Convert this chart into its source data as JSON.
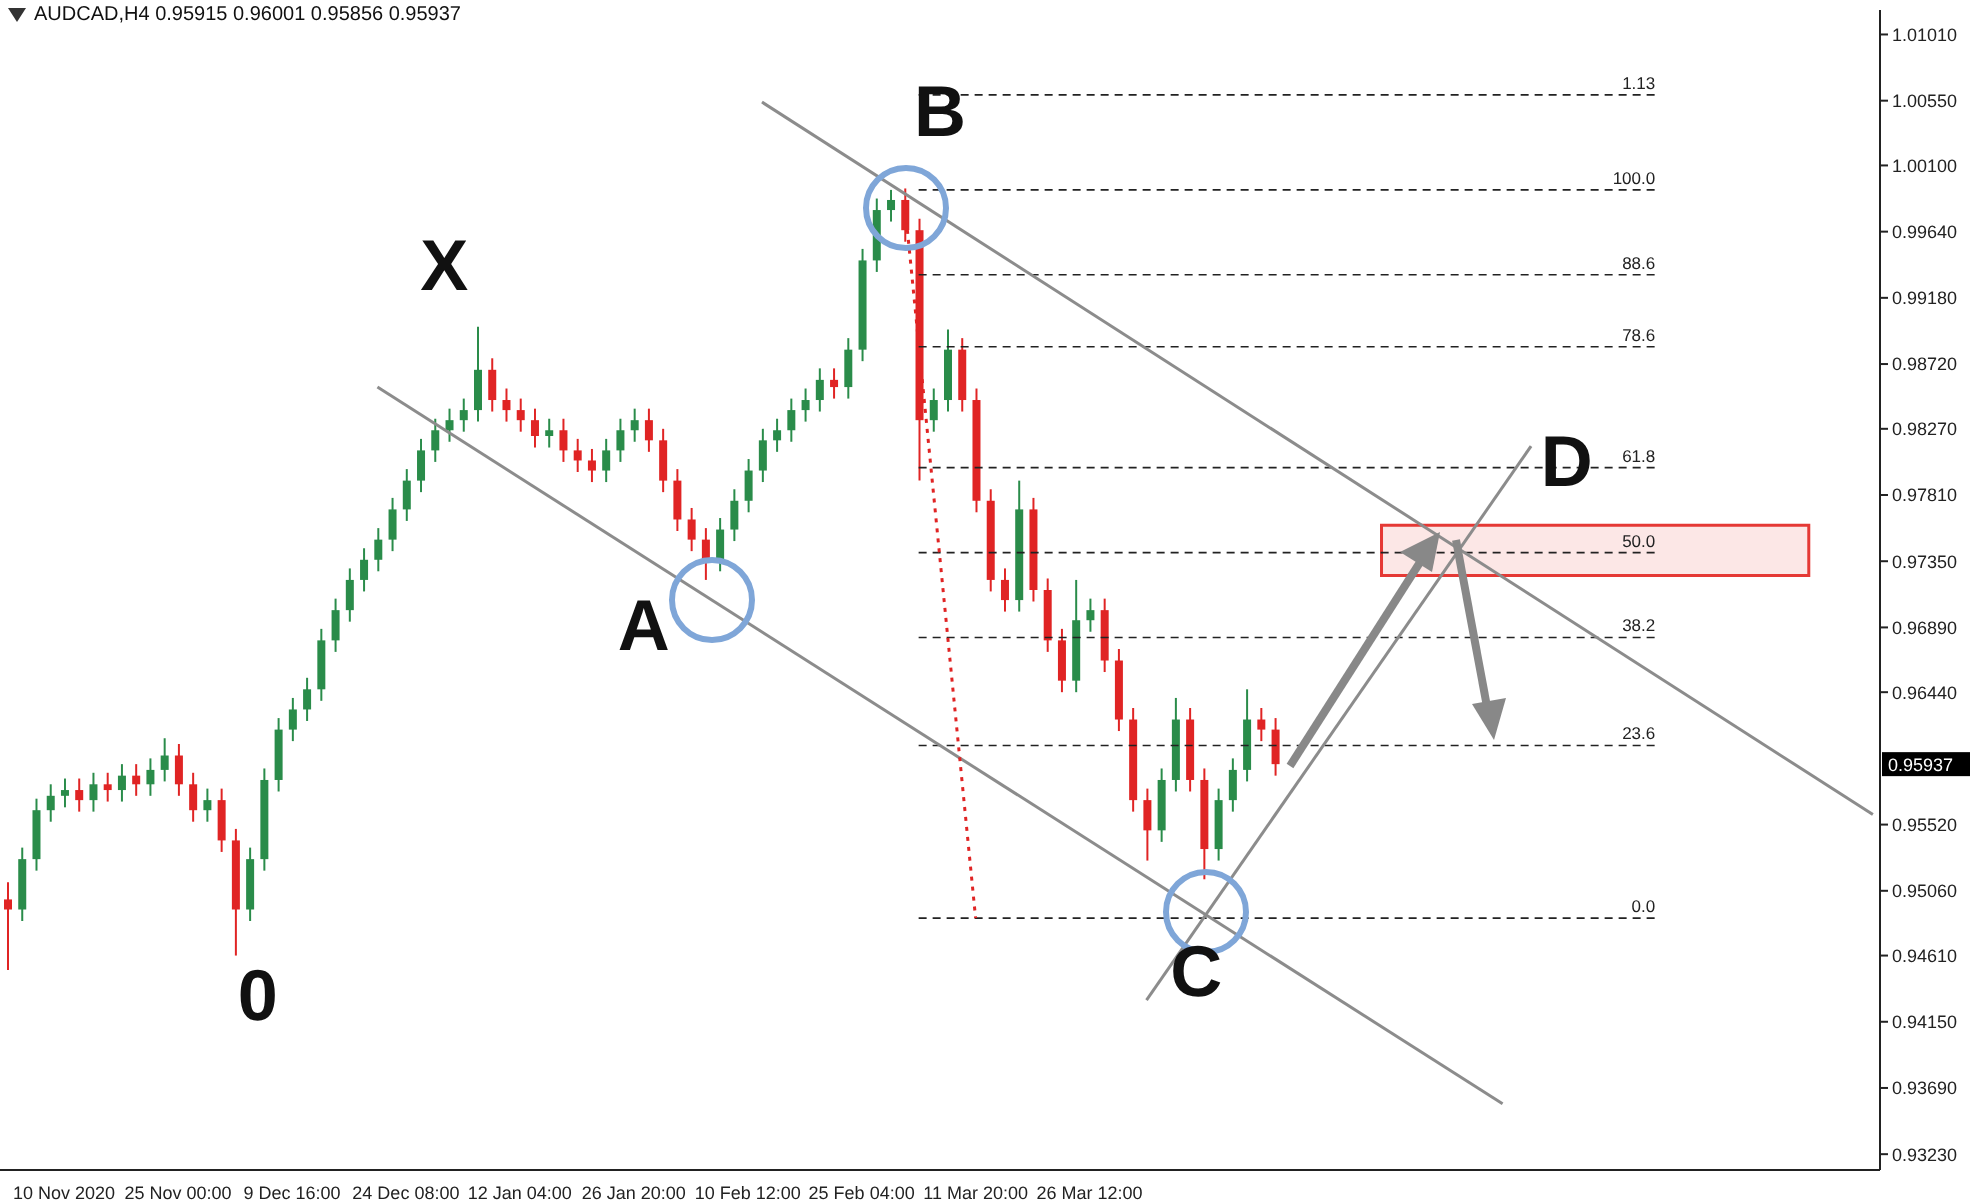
{
  "chart_data": {
    "type": "candlestick",
    "title": "AUDCAD,H4  0.95915 0.96001 0.95856 0.95937",
    "categories": [
      null,
      null,
      null,
      null,
      "10 Nov 2020",
      null,
      null,
      null,
      null,
      null,
      null,
      null,
      "25 Nov 00:00",
      null,
      null,
      null,
      null,
      null,
      null,
      null,
      "9 Dec 16:00",
      null,
      null,
      null,
      null,
      null,
      null,
      null,
      "24 Dec 08:00",
      null,
      null,
      null,
      null,
      null,
      null,
      null,
      "12 Jan 04:00",
      null,
      null,
      null,
      null,
      null,
      null,
      null,
      "26 Jan 20:00",
      null,
      null,
      null,
      null,
      null,
      null,
      null,
      "10 Feb 12:00",
      null,
      null,
      null,
      null,
      null,
      null,
      null,
      "25 Feb 04:00",
      null,
      null,
      null,
      null,
      null,
      null,
      null,
      "11 Mar 20:00",
      null,
      null,
      null,
      null,
      null,
      null,
      null,
      "26 Mar 12:00",
      null,
      null,
      null,
      null,
      null,
      null,
      null,
      null,
      null,
      null,
      null,
      null,
      null,
      null,
      null,
      null,
      null,
      null,
      null,
      null,
      null,
      null,
      null,
      null,
      null,
      null,
      null,
      null,
      null,
      null,
      null,
      null,
      null,
      null,
      null,
      null,
      null,
      null,
      null,
      null,
      null,
      null,
      null,
      null,
      null,
      null,
      null,
      null,
      null,
      null,
      null,
      null,
      null,
      null,
      null
    ],
    "ohlc": [
      [
        0.95,
        0.9512,
        0.9451,
        0.9493
      ],
      [
        0.9493,
        0.9536,
        0.9485,
        0.9528
      ],
      [
        0.9528,
        0.957,
        0.952,
        0.9562
      ],
      [
        0.9562,
        0.958,
        0.9554,
        0.9572
      ],
      [
        0.9572,
        0.9584,
        0.9564,
        0.9576
      ],
      [
        0.9576,
        0.9584,
        0.9561,
        0.9569
      ],
      [
        0.9569,
        0.9588,
        0.9561,
        0.958
      ],
      [
        0.958,
        0.9588,
        0.9568,
        0.9576
      ],
      [
        0.9576,
        0.9594,
        0.9568,
        0.9586
      ],
      [
        0.9586,
        0.9594,
        0.9572,
        0.958
      ],
      [
        0.958,
        0.9598,
        0.9572,
        0.959
      ],
      [
        0.959,
        0.9612,
        0.9582,
        0.96
      ],
      [
        0.96,
        0.9608,
        0.9572,
        0.958
      ],
      [
        0.958,
        0.9588,
        0.9554,
        0.9562
      ],
      [
        0.9562,
        0.9577,
        0.9554,
        0.9569
      ],
      [
        0.9569,
        0.9577,
        0.9533,
        0.9541
      ],
      [
        0.9541,
        0.9549,
        0.9461,
        0.9493
      ],
      [
        0.9493,
        0.9536,
        0.9485,
        0.9528
      ],
      [
        0.9528,
        0.9591,
        0.952,
        0.9583
      ],
      [
        0.9583,
        0.9626,
        0.9575,
        0.9618
      ],
      [
        0.9618,
        0.964,
        0.961,
        0.9632
      ],
      [
        0.9632,
        0.9654,
        0.9624,
        0.9646
      ],
      [
        0.9646,
        0.9688,
        0.9638,
        0.968
      ],
      [
        0.968,
        0.9709,
        0.9672,
        0.9701
      ],
      [
        0.9701,
        0.973,
        0.9693,
        0.9722
      ],
      [
        0.9722,
        0.9744,
        0.9714,
        0.9736
      ],
      [
        0.9736,
        0.9758,
        0.9728,
        0.975
      ],
      [
        0.975,
        0.9779,
        0.9742,
        0.9771
      ],
      [
        0.9771,
        0.9799,
        0.9763,
        0.9791
      ],
      [
        0.9791,
        0.982,
        0.9783,
        0.9812
      ],
      [
        0.9812,
        0.9834,
        0.9804,
        0.9826
      ],
      [
        0.9826,
        0.9841,
        0.9818,
        0.9833
      ],
      [
        0.9833,
        0.9848,
        0.9825,
        0.984
      ],
      [
        0.984,
        0.9898,
        0.9832,
        0.9868
      ],
      [
        0.9868,
        0.9876,
        0.9839,
        0.9847
      ],
      [
        0.9847,
        0.9855,
        0.9832,
        0.984
      ],
      [
        0.984,
        0.9848,
        0.9825,
        0.9833
      ],
      [
        0.9833,
        0.9841,
        0.9814,
        0.9822
      ],
      [
        0.9822,
        0.9834,
        0.9814,
        0.9826
      ],
      [
        0.9826,
        0.9834,
        0.9804,
        0.9812
      ],
      [
        0.9812,
        0.982,
        0.9797,
        0.9805
      ],
      [
        0.9805,
        0.9813,
        0.979,
        0.9798
      ],
      [
        0.9798,
        0.982,
        0.979,
        0.9812
      ],
      [
        0.9812,
        0.9834,
        0.9804,
        0.9826
      ],
      [
        0.9826,
        0.9841,
        0.9818,
        0.9833
      ],
      [
        0.9833,
        0.9841,
        0.9811,
        0.9819
      ],
      [
        0.9819,
        0.9827,
        0.9783,
        0.9791
      ],
      [
        0.9791,
        0.9799,
        0.9756,
        0.9764
      ],
      [
        0.9764,
        0.9772,
        0.9742,
        0.975
      ],
      [
        0.975,
        0.9758,
        0.9722,
        0.9736
      ],
      [
        0.9736,
        0.9765,
        0.9728,
        0.9757
      ],
      [
        0.9757,
        0.9785,
        0.9749,
        0.9777
      ],
      [
        0.9777,
        0.9806,
        0.9769,
        0.9798
      ],
      [
        0.9798,
        0.9827,
        0.979,
        0.9819
      ],
      [
        0.9819,
        0.9834,
        0.9811,
        0.9826
      ],
      [
        0.9826,
        0.9848,
        0.9818,
        0.984
      ],
      [
        0.984,
        0.9855,
        0.9832,
        0.9847
      ],
      [
        0.9847,
        0.9869,
        0.9839,
        0.9861
      ],
      [
        0.9861,
        0.9869,
        0.9848,
        0.9856
      ],
      [
        0.9856,
        0.989,
        0.9848,
        0.9882
      ],
      [
        0.9882,
        0.9952,
        0.9874,
        0.9944
      ],
      [
        0.9944,
        0.9987,
        0.9936,
        0.9979
      ],
      [
        0.9979,
        0.9993,
        0.9971,
        0.9986
      ],
      [
        0.9986,
        0.9994,
        0.9957,
        0.9965
      ],
      [
        0.9965,
        0.9973,
        0.9791,
        0.9833
      ],
      [
        0.9833,
        0.9855,
        0.9825,
        0.9847
      ],
      [
        0.9847,
        0.9896,
        0.9839,
        0.9882
      ],
      [
        0.9882,
        0.989,
        0.9839,
        0.9847
      ],
      [
        0.9847,
        0.9855,
        0.9769,
        0.9777
      ],
      [
        0.9777,
        0.9785,
        0.9714,
        0.9722
      ],
      [
        0.9722,
        0.973,
        0.97,
        0.9708
      ],
      [
        0.9708,
        0.9791,
        0.97,
        0.9771
      ],
      [
        0.9771,
        0.9779,
        0.9707,
        0.9715
      ],
      [
        0.9715,
        0.9723,
        0.9672,
        0.968
      ],
      [
        0.968,
        0.9688,
        0.9644,
        0.9652
      ],
      [
        0.9652,
        0.9722,
        0.9644,
        0.9694
      ],
      [
        0.9694,
        0.9709,
        0.9686,
        0.9701
      ],
      [
        0.9701,
        0.9709,
        0.9658,
        0.9666
      ],
      [
        0.9666,
        0.9674,
        0.9617,
        0.9625
      ],
      [
        0.9625,
        0.9633,
        0.9561,
        0.9569
      ],
      [
        0.9569,
        0.9577,
        0.9527,
        0.9548
      ],
      [
        0.9548,
        0.9591,
        0.954,
        0.9583
      ],
      [
        0.9583,
        0.964,
        0.9575,
        0.9625
      ],
      [
        0.9625,
        0.9633,
        0.9575,
        0.9583
      ],
      [
        0.9583,
        0.9591,
        0.9514,
        0.9535
      ],
      [
        0.9535,
        0.9577,
        0.9527,
        0.9569
      ],
      [
        0.9569,
        0.9598,
        0.9561,
        0.959
      ],
      [
        0.959,
        0.9646,
        0.9582,
        0.9625
      ],
      [
        0.9625,
        0.9633,
        0.961,
        0.9618
      ],
      [
        0.9618,
        0.9626,
        0.9586,
        0.9594
      ],
      null,
      null,
      null,
      null,
      null,
      null,
      null,
      null,
      null,
      null,
      null,
      null,
      null,
      null,
      null,
      null,
      null,
      null,
      null,
      null,
      null,
      null,
      null,
      null,
      null,
      null,
      null,
      null,
      null,
      null,
      null,
      null,
      null,
      null,
      null,
      null,
      null,
      null,
      null,
      null,
      null,
      null
    ],
    "colors": [
      "#e02424",
      "#2a8c4a",
      "#2a8c4a",
      "#2a8c4a",
      "#2a8c4a",
      "#e02424",
      "#2a8c4a",
      "#e02424",
      "#2a8c4a",
      "#e02424",
      "#2a8c4a",
      "#2a8c4a",
      "#e02424",
      "#e02424",
      "#2a8c4a",
      "#e02424",
      "#e02424",
      "#2a8c4a",
      "#2a8c4a",
      "#2a8c4a",
      "#2a8c4a",
      "#2a8c4a",
      "#2a8c4a",
      "#2a8c4a",
      "#2a8c4a",
      "#2a8c4a",
      "#2a8c4a",
      "#2a8c4a",
      "#2a8c4a",
      "#2a8c4a",
      "#2a8c4a",
      "#2a8c4a",
      "#2a8c4a",
      "#2a8c4a",
      "#e02424",
      "#e02424",
      "#e02424",
      "#e02424",
      "#2a8c4a",
      "#e02424",
      "#e02424",
      "#e02424",
      "#2a8c4a",
      "#2a8c4a",
      "#2a8c4a",
      "#e02424",
      "#e02424",
      "#e02424",
      "#e02424",
      "#e02424",
      "#2a8c4a",
      "#2a8c4a",
      "#2a8c4a",
      "#2a8c4a",
      "#2a8c4a",
      "#2a8c4a",
      "#2a8c4a",
      "#2a8c4a",
      "#e02424",
      "#2a8c4a",
      "#2a8c4a",
      "#2a8c4a",
      "#2a8c4a",
      "#e02424",
      "#e02424",
      "#2a8c4a",
      "#2a8c4a",
      "#e02424",
      "#e02424",
      "#e02424",
      "#e02424",
      "#2a8c4a",
      "#e02424",
      "#e02424",
      "#e02424",
      "#2a8c4a",
      "#2a8c4a",
      "#e02424",
      "#e02424",
      "#e02424",
      "#e02424",
      "#2a8c4a",
      "#2a8c4a",
      "#e02424",
      "#e02424",
      "#2a8c4a",
      "#2a8c4a",
      "#2a8c4a",
      "#e02424",
      "#e02424",
      null,
      null,
      null,
      null,
      null,
      null,
      null,
      null,
      null,
      null,
      null,
      null,
      null,
      null,
      null,
      null,
      null,
      null,
      null,
      null,
      null,
      null,
      null,
      null,
      null,
      null,
      null,
      null,
      null,
      null,
      null,
      null,
      null,
      null,
      null,
      null,
      null,
      null,
      null,
      null,
      null,
      null
    ],
    "series": [
      {
        "type": "line",
        "color": "#8c8c8c",
        "values": [
          null,
          null,
          null,
          null,
          null,
          null,
          null,
          null,
          null,
          null,
          null,
          null,
          null,
          null,
          null,
          null,
          null,
          null,
          null,
          null,
          null,
          null,
          null,
          null,
          null,
          null,
          null,
          null,
          null,
          null,
          null,
          null,
          null,
          null,
          null,
          null,
          null,
          null,
          null,
          null,
          null,
          null,
          null,
          null,
          null,
          null,
          null,
          null,
          null,
          null,
          null,
          null,
          null,
          1.0054,
          null,
          null,
          null,
          null,
          null,
          null,
          null,
          null,
          null,
          null,
          null,
          null,
          null,
          null,
          null,
          null,
          null,
          null,
          null,
          null,
          null,
          null,
          null,
          null,
          null,
          null,
          null,
          null,
          null,
          null,
          null,
          null,
          null,
          null,
          null,
          null,
          null,
          null,
          null,
          null,
          null,
          null,
          null,
          null,
          null,
          null,
          null,
          null,
          null,
          null,
          null,
          null,
          null,
          null,
          null,
          null,
          null,
          null,
          null,
          null,
          null,
          null,
          null,
          null,
          null,
          null,
          null,
          null,
          null,
          null,
          null,
          null,
          null,
          null,
          null,
          null,
          null,
          0.9559
        ]
      },
      {
        "type": "line",
        "color": "#8c8c8c",
        "values": [
          null,
          null,
          null,
          null,
          null,
          null,
          null,
          null,
          null,
          null,
          null,
          null,
          null,
          null,
          null,
          null,
          null,
          null,
          null,
          null,
          null,
          null,
          null,
          null,
          null,
          null,
          0.9856,
          null,
          null,
          null,
          null,
          null,
          null,
          null,
          null,
          null,
          null,
          null,
          null,
          null,
          null,
          null,
          null,
          null,
          null,
          null,
          null,
          null,
          null,
          null,
          null,
          null,
          null,
          null,
          null,
          null,
          null,
          null,
          null,
          null,
          null,
          null,
          null,
          null,
          null,
          null,
          null,
          null,
          null,
          null,
          null,
          null,
          null,
          null,
          null,
          null,
          null,
          null,
          null,
          null,
          null,
          null,
          null,
          null,
          null,
          null,
          null,
          null,
          null,
          null,
          null,
          null,
          null,
          null,
          null,
          null,
          null,
          null,
          null,
          null,
          null,
          null,
          null,
          null,
          null,
          0.9358,
          null,
          null,
          null,
          null,
          null,
          null,
          null,
          null,
          null,
          null,
          null,
          null,
          null,
          null,
          null,
          null,
          null,
          null,
          null,
          null,
          null,
          null,
          null,
          null,
          null,
          null
        ]
      },
      {
        "type": "line",
        "color": "#8c8c8c",
        "values": [
          null,
          null,
          null,
          null,
          null,
          null,
          null,
          null,
          null,
          null,
          null,
          null,
          null,
          null,
          null,
          null,
          null,
          null,
          null,
          null,
          null,
          null,
          null,
          null,
          null,
          null,
          null,
          null,
          null,
          null,
          null,
          null,
          null,
          null,
          null,
          null,
          null,
          null,
          null,
          null,
          null,
          null,
          null,
          null,
          null,
          null,
          null,
          null,
          null,
          null,
          null,
          null,
          null,
          null,
          null,
          null,
          null,
          null,
          null,
          null,
          null,
          null,
          null,
          null,
          null,
          null,
          null,
          null,
          null,
          null,
          null,
          null,
          null,
          null,
          null,
          null,
          null,
          null,
          null,
          null,
          0.943,
          null,
          null,
          null,
          null,
          null,
          null,
          null,
          null,
          null,
          null,
          null,
          null,
          null,
          null,
          null,
          null,
          null,
          null,
          null,
          null,
          null,
          null,
          null,
          null,
          null,
          null,
          0.9815,
          null,
          null,
          null,
          null,
          null,
          null,
          null,
          null,
          null,
          null,
          null,
          null,
          null,
          null,
          null,
          null,
          null,
          null,
          null,
          null,
          null,
          null,
          null,
          null
        ]
      },
      {
        "type": "line",
        "color": "#e02424",
        "line_style": "dotted",
        "values": [
          null,
          null,
          null,
          null,
          null,
          null,
          null,
          null,
          null,
          null,
          null,
          null,
          null,
          null,
          null,
          null,
          null,
          null,
          null,
          null,
          null,
          null,
          null,
          null,
          null,
          null,
          null,
          null,
          null,
          null,
          null,
          null,
          null,
          null,
          null,
          null,
          null,
          null,
          null,
          null,
          null,
          null,
          null,
          null,
          null,
          null,
          null,
          null,
          null,
          null,
          null,
          null,
          null,
          null,
          null,
          null,
          null,
          null,
          null,
          null,
          null,
          null,
          null,
          0.9986,
          null,
          null,
          null,
          null,
          0.9487,
          null,
          null,
          null,
          null,
          null,
          null,
          null,
          null,
          null,
          null,
          null,
          null,
          null,
          null,
          null,
          null,
          null,
          null,
          null,
          null,
          null,
          null,
          null,
          null,
          null,
          null,
          null,
          null,
          null,
          null,
          null,
          null,
          null,
          null,
          null,
          null,
          null,
          null,
          null,
          null,
          null,
          null,
          null,
          null,
          null,
          null,
          null,
          null,
          null,
          null,
          null,
          null,
          null,
          null,
          null,
          null,
          null,
          null,
          null,
          null,
          null,
          null,
          null
        ]
      }
    ],
    "ylim": [
      0.9312,
      1.0118
    ],
    "yticks": [
      {
        "value": 1.0101,
        "label": "1.01010"
      },
      {
        "value": 1.0055,
        "label": "1.00550"
      },
      {
        "value": 1.001,
        "label": "1.00100"
      },
      {
        "value": 0.9964,
        "label": "0.99640"
      },
      {
        "value": 0.9918,
        "label": "0.99180"
      },
      {
        "value": 0.9872,
        "label": "0.98720"
      },
      {
        "value": 0.9827,
        "label": "0.98270"
      },
      {
        "value": 0.9781,
        "label": "0.97810"
      },
      {
        "value": 0.9735,
        "label": "0.97350"
      },
      {
        "value": 0.9689,
        "label": "0.96890"
      },
      {
        "value": 0.9644,
        "label": "0.96440"
      },
      {
        "value": 0.9552,
        "label": "0.95520"
      },
      {
        "value": 0.9506,
        "label": "0.95060"
      },
      {
        "value": 0.9461,
        "label": "0.94610"
      },
      {
        "value": 0.9415,
        "label": "0.94150"
      },
      {
        "value": 0.9369,
        "label": "0.93690"
      },
      {
        "value": 0.9323,
        "label": "0.93230"
      }
    ],
    "ref_lines": [
      {
        "axis": "y",
        "value": 1.0059,
        "line_style": "dashed",
        "color": "#222222"
      },
      {
        "axis": "y",
        "value": 0.9993,
        "line_style": "dashed",
        "color": "#222222"
      },
      {
        "axis": "y",
        "value": 0.9934,
        "line_style": "dashed",
        "color": "#222222"
      },
      {
        "axis": "y",
        "value": 0.9884,
        "line_style": "dashed",
        "color": "#222222"
      },
      {
        "axis": "y",
        "value": 0.98,
        "line_style": "dashed",
        "color": "#222222"
      },
      {
        "axis": "y",
        "value": 0.9741,
        "line_style": "dashed",
        "color": "#222222"
      },
      {
        "axis": "y",
        "value": 0.9682,
        "line_style": "dashed",
        "color": "#222222"
      },
      {
        "axis": "y",
        "value": 0.9607,
        "line_style": "dashed",
        "color": "#222222"
      },
      {
        "axis": "y",
        "value": 0.9487,
        "line_style": "dashed",
        "color": "#222222"
      }
    ],
    "bands": [
      {
        "axis": "y",
        "from": 0.9725,
        "to": 0.976,
        "color": "#e53935"
      }
    ],
    "annotations": [
      "X",
      "A",
      "B",
      "C",
      "D",
      "0",
      "0.95937",
      {
        "text": "1.13",
        "y": 1.0059
      },
      {
        "text": "100.0",
        "y": 0.9993
      },
      {
        "text": "88.6",
        "y": 0.9934
      },
      {
        "text": "78.6",
        "y": 0.9884
      },
      {
        "text": "61.8",
        "y": 0.98
      },
      {
        "text": "50.0",
        "y": 0.9741
      },
      {
        "text": "38.2",
        "y": 0.9682
      },
      {
        "text": "23.6",
        "y": 0.9607
      },
      {
        "text": "0.0",
        "y": 0.9487
      }
    ]
  }
}
